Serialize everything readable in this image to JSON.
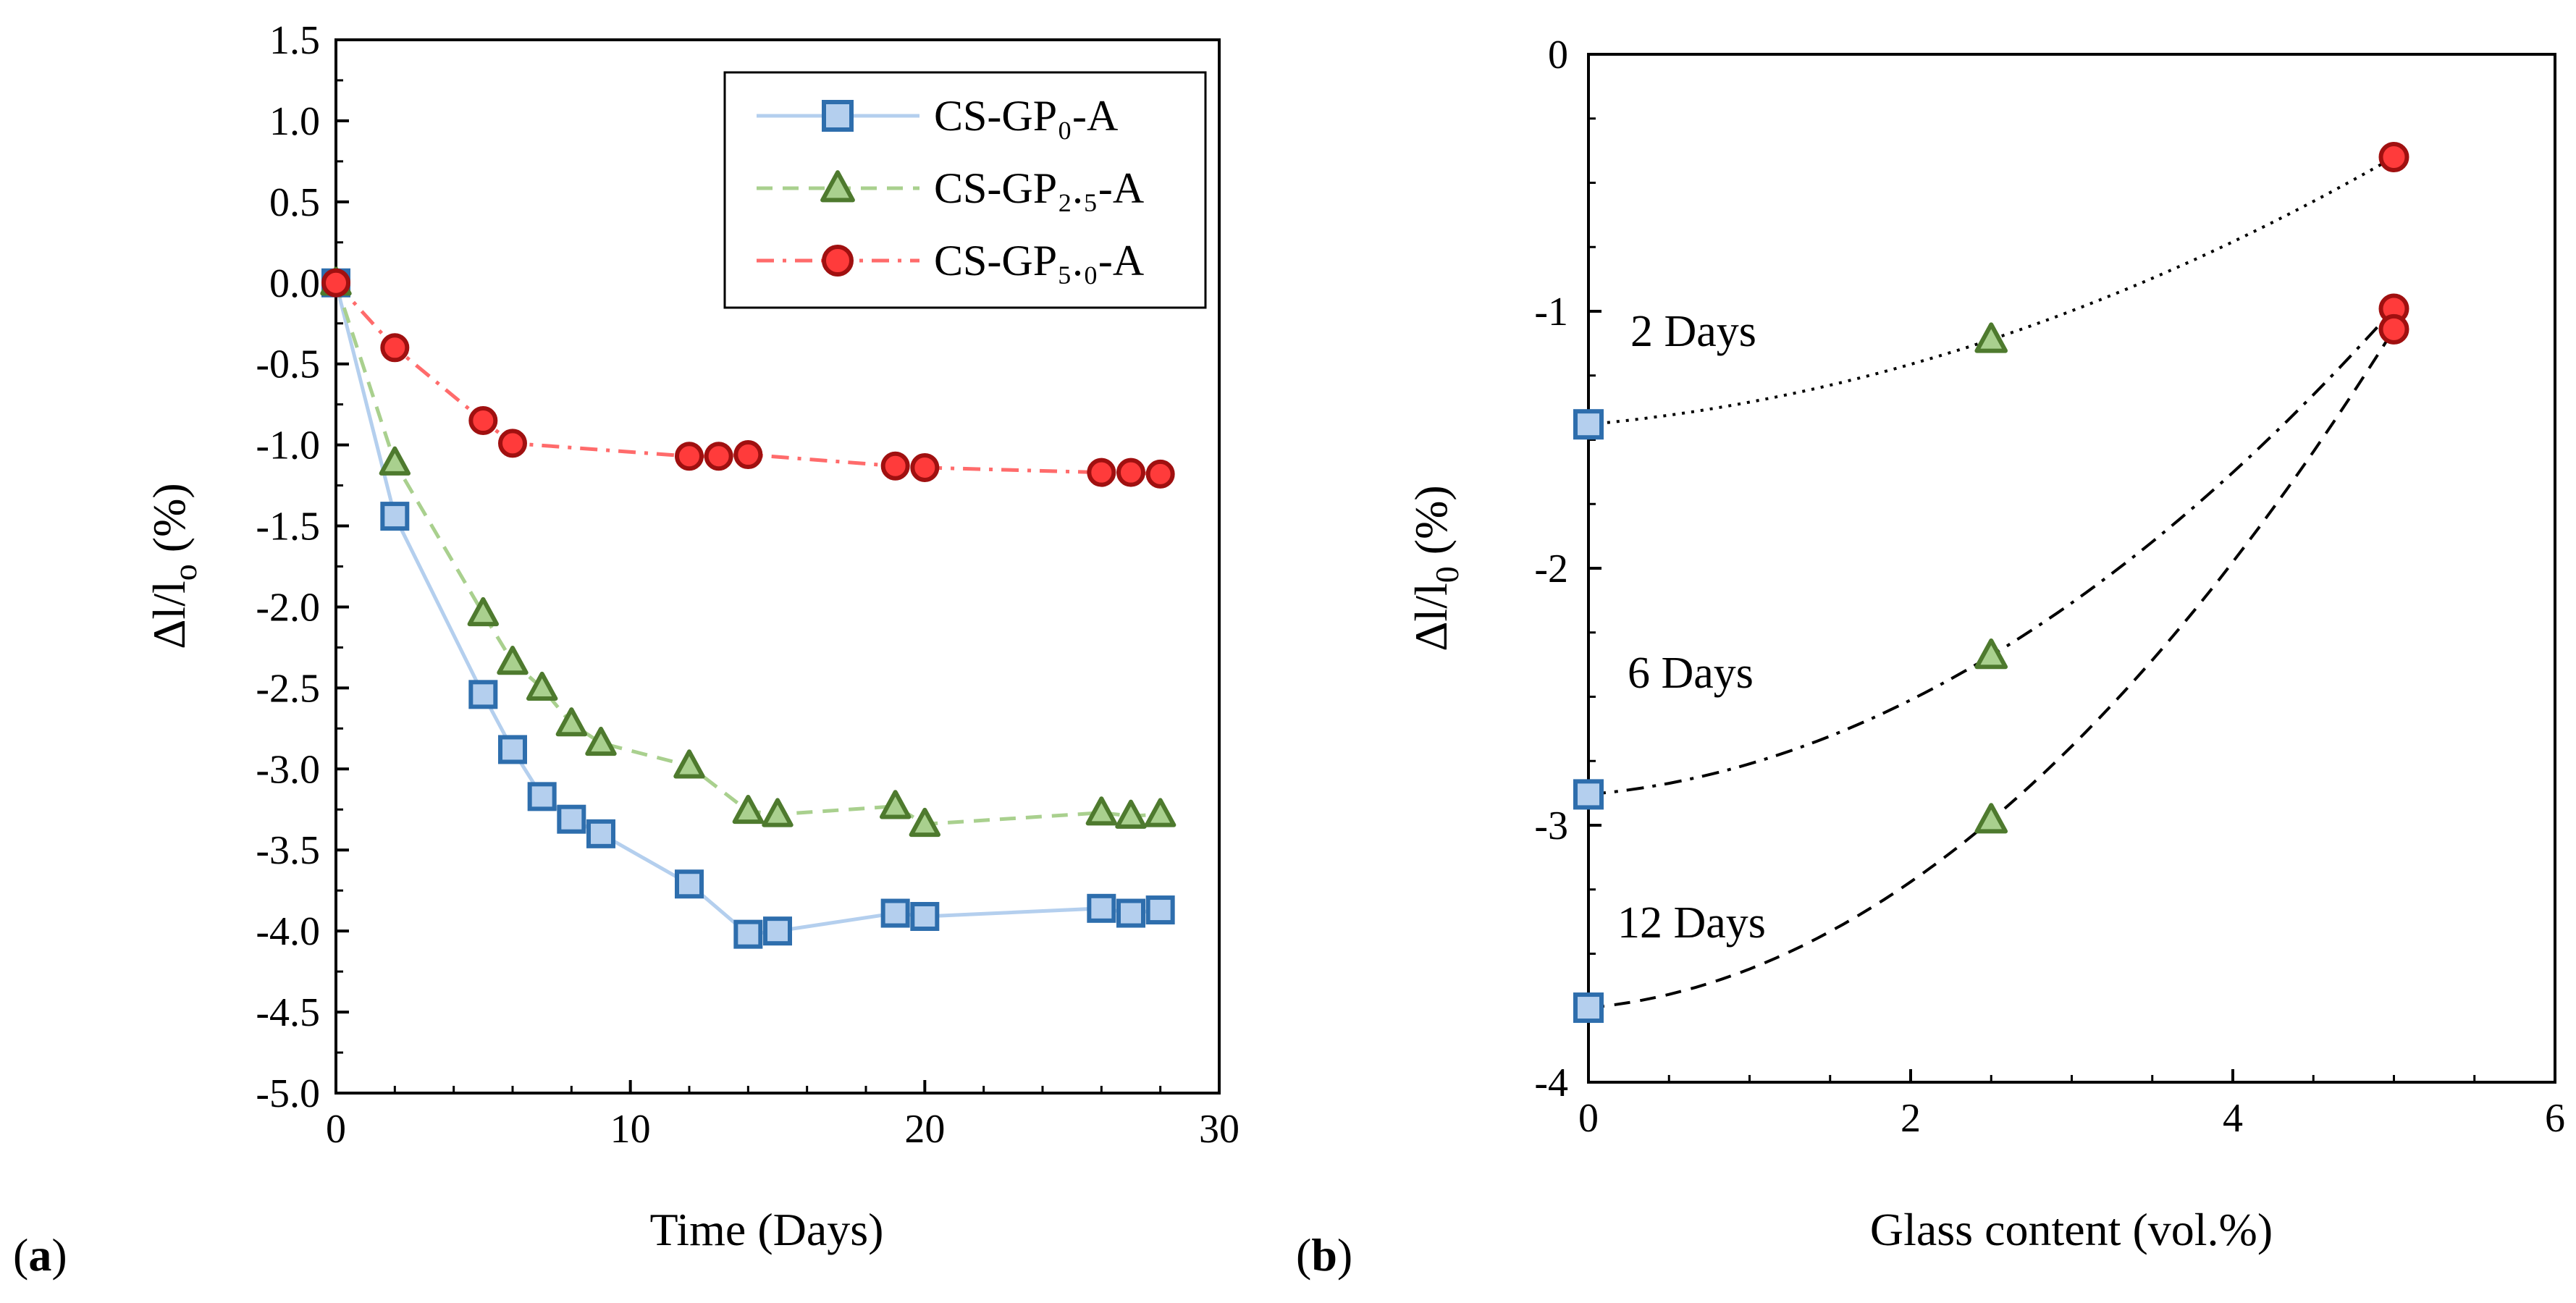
{
  "panel_labels": {
    "a": "a",
    "b": "b"
  },
  "colors": {
    "s0_fill": "#b4cfee",
    "s0_stroke": "#2e6ead",
    "s0_line": "#b4cfee",
    "s25_fill": "#a9d08e",
    "s25_stroke": "#4e7a2e",
    "s25_line": "#a9d08e",
    "s50_fill": "#ff3b3b",
    "s50_stroke": "#a01010",
    "s50_line": "#ff6b6b"
  },
  "chart_data": [
    {
      "type": "line",
      "xlabel": "Time (Days)",
      "ylabel": "Δl/l",
      "ylabel_sub": "o",
      "ylabel_unit": " (%)",
      "xlim": [
        0,
        30
      ],
      "ylim": [
        -5.0,
        1.5
      ],
      "xticks": [
        "0",
        "10",
        "20",
        "30"
      ],
      "yticks": [
        "1.5",
        "1.0",
        "0.5",
        "0.0",
        "-0.5",
        "-1.0",
        "-1.5",
        "-2.0",
        "-2.5",
        "-3.0",
        "-3.5",
        "-4.0",
        "-4.5",
        "-5.0"
      ],
      "legend_position": "top-right",
      "series": [
        {
          "name": "CS-GP₀-A",
          "marker": "square",
          "line": "solid",
          "x": [
            0,
            2,
            5,
            6,
            7,
            8,
            9,
            12,
            14,
            15,
            19,
            20,
            26,
            27,
            28
          ],
          "y": [
            0.0,
            -1.44,
            -2.54,
            -2.88,
            -3.17,
            -3.31,
            -3.4,
            -3.71,
            -4.02,
            -4.0,
            -3.89,
            -3.91,
            -3.86,
            -3.89,
            -3.87
          ]
        },
        {
          "name": "CS-GP₂.₅-A",
          "marker": "triangle",
          "line": "dashed",
          "x": [
            0,
            2,
            5,
            6,
            7,
            8,
            9,
            12,
            14,
            15,
            19,
            20,
            26,
            27,
            28
          ],
          "y": [
            0.0,
            -1.11,
            -2.04,
            -2.34,
            -2.5,
            -2.72,
            -2.84,
            -2.98,
            -3.26,
            -3.28,
            -3.23,
            -3.34,
            -3.27,
            -3.29,
            -3.28
          ]
        },
        {
          "name": "CS-GP₅.₀-A",
          "marker": "circle",
          "line": "dashdot",
          "x": [
            0,
            2,
            5,
            6,
            12,
            13,
            14,
            19,
            20,
            26,
            27,
            28
          ],
          "y": [
            0.0,
            -0.4,
            -0.85,
            -0.99,
            -1.07,
            -1.07,
            -1.06,
            -1.13,
            -1.14,
            -1.17,
            -1.17,
            -1.18
          ]
        }
      ]
    },
    {
      "type": "scatter",
      "xlabel": "Glass content (vol.%)",
      "ylabel": "Δl/l",
      "ylabel_sub": "0",
      "ylabel_unit": " (%)",
      "xlim": [
        0,
        6
      ],
      "ylim": [
        -4,
        0
      ],
      "xticks": [
        "0",
        "2",
        "4",
        "6"
      ],
      "yticks": [
        "0",
        "-1",
        "-2",
        "-3",
        "-4"
      ],
      "annotations": [
        "2 Days",
        "6 Days",
        "12 Days"
      ],
      "series": [
        {
          "name": "2 Days",
          "line": "dotted",
          "x": [
            0,
            2.5,
            5
          ],
          "y": [
            -1.44,
            -1.11,
            -0.4
          ],
          "markers": [
            "square",
            "triangle",
            "circle"
          ]
        },
        {
          "name": "6 Days",
          "line": "dashdot",
          "x": [
            0,
            2.5,
            5
          ],
          "y": [
            -2.88,
            -2.34,
            -0.99
          ],
          "markers": [
            "square",
            "triangle",
            "circle"
          ]
        },
        {
          "name": "12 Days",
          "line": "dashed",
          "x": [
            0,
            2.5,
            5
          ],
          "y": [
            -3.71,
            -2.98,
            -1.07
          ],
          "markers": [
            "square",
            "triangle",
            "circle"
          ]
        }
      ]
    }
  ]
}
